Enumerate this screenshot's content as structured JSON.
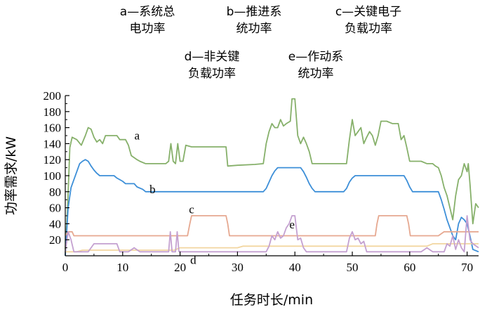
{
  "chart_data": {
    "type": "line",
    "xlabel": "任务时长/min",
    "ylabel": "功率需求/kW",
    "xlim": [
      0,
      72
    ],
    "ylim": [
      0,
      200
    ],
    "xticks": [
      0,
      10,
      20,
      30,
      40,
      50,
      60,
      70
    ],
    "yticks": [
      20,
      40,
      60,
      80,
      100,
      120,
      140,
      160,
      180,
      200
    ],
    "grid": false,
    "legend": [
      {
        "key": "a",
        "lines": [
          "a—系统总",
          "电功率"
        ]
      },
      {
        "key": "b",
        "lines": [
          "b—推进系",
          "统功率"
        ]
      },
      {
        "key": "c",
        "lines": [
          "c—关键电子",
          "负载功率"
        ]
      },
      {
        "key": "d",
        "lines": [
          "d—非关键",
          "负载功率"
        ]
      },
      {
        "key": "e",
        "lines": [
          "e—作动系",
          "统功率"
        ]
      }
    ],
    "series": [
      {
        "name": "a",
        "color": "#86b06a",
        "label_at": [
          12.5,
          145
        ],
        "points": [
          [
            0,
            8
          ],
          [
            0.4,
            60
          ],
          [
            0.8,
            135
          ],
          [
            1.2,
            148
          ],
          [
            2,
            145
          ],
          [
            2.8,
            138
          ],
          [
            3.5,
            150
          ],
          [
            4,
            160
          ],
          [
            4.5,
            158
          ],
          [
            5,
            148
          ],
          [
            5.5,
            142
          ],
          [
            6,
            145
          ],
          [
            6.5,
            140
          ],
          [
            7,
            150
          ],
          [
            8,
            150
          ],
          [
            9,
            150
          ],
          [
            9.5,
            145
          ],
          [
            10.5,
            145
          ],
          [
            11,
            138
          ],
          [
            11.5,
            125
          ],
          [
            12.5,
            120
          ],
          [
            13,
            118
          ],
          [
            14,
            115
          ],
          [
            17,
            115
          ],
          [
            17.5,
            115
          ],
          [
            18,
            118
          ],
          [
            18.4,
            140
          ],
          [
            18.8,
            118
          ],
          [
            19.2,
            115
          ],
          [
            19.6,
            140
          ],
          [
            20,
            118
          ],
          [
            20.5,
            118
          ],
          [
            21,
            138
          ],
          [
            22,
            136
          ],
          [
            24,
            136
          ],
          [
            26,
            136
          ],
          [
            28,
            136
          ],
          [
            28.3,
            112
          ],
          [
            30,
            113
          ],
          [
            33,
            114
          ],
          [
            34.5,
            115
          ],
          [
            35,
            140
          ],
          [
            35.5,
            155
          ],
          [
            36,
            165
          ],
          [
            36.5,
            160
          ],
          [
            37,
            160
          ],
          [
            37.5,
            170
          ],
          [
            38,
            162
          ],
          [
            38.5,
            165
          ],
          [
            39.2,
            168
          ],
          [
            39.5,
            196
          ],
          [
            40,
            196
          ],
          [
            40.5,
            150
          ],
          [
            41,
            140
          ],
          [
            41.5,
            148
          ],
          [
            42,
            140
          ],
          [
            42.5,
            130
          ],
          [
            43,
            115
          ],
          [
            45,
            115
          ],
          [
            48,
            115
          ],
          [
            49,
            115
          ],
          [
            49.5,
            145
          ],
          [
            50,
            170
          ],
          [
            50.5,
            150
          ],
          [
            51,
            155
          ],
          [
            51.5,
            160
          ],
          [
            52,
            140
          ],
          [
            52.5,
            148
          ],
          [
            53,
            155
          ],
          [
            53.5,
            150
          ],
          [
            54,
            138
          ],
          [
            54.5,
            150
          ],
          [
            55,
            168
          ],
          [
            56,
            168
          ],
          [
            57,
            165
          ],
          [
            58,
            165
          ],
          [
            58.5,
            145
          ],
          [
            59,
            150
          ],
          [
            59.5,
            135
          ],
          [
            60,
            118
          ],
          [
            62,
            118
          ],
          [
            63,
            115
          ],
          [
            64,
            115
          ],
          [
            64.5,
            112
          ],
          [
            65,
            110
          ],
          [
            65.5,
            100
          ],
          [
            66,
            85
          ],
          [
            66.5,
            75
          ],
          [
            67,
            60
          ],
          [
            67.5,
            45
          ],
          [
            68,
            75
          ],
          [
            68.5,
            95
          ],
          [
            69,
            100
          ],
          [
            69.5,
            115
          ],
          [
            70,
            105
          ],
          [
            70.2,
            115
          ],
          [
            70.5,
            90
          ],
          [
            71,
            40
          ],
          [
            71.5,
            65
          ],
          [
            72,
            60
          ]
        ]
      },
      {
        "name": "b",
        "color": "#3d8fd8",
        "label_at": [
          15.2,
          78
        ],
        "points": [
          [
            0,
            0
          ],
          [
            0.5,
            60
          ],
          [
            1,
            85
          ],
          [
            1.5,
            95
          ],
          [
            2,
            105
          ],
          [
            2.5,
            115
          ],
          [
            3,
            118
          ],
          [
            3.5,
            120
          ],
          [
            4,
            118
          ],
          [
            4.5,
            112
          ],
          [
            5,
            107
          ],
          [
            5.5,
            103
          ],
          [
            6,
            100
          ],
          [
            8,
            100
          ],
          [
            8.5,
            100
          ],
          [
            9,
            97
          ],
          [
            10,
            93
          ],
          [
            10.5,
            90
          ],
          [
            12,
            90
          ],
          [
            12.5,
            86
          ],
          [
            13.5,
            83
          ],
          [
            14,
            80
          ],
          [
            20,
            80
          ],
          [
            30,
            80
          ],
          [
            34.5,
            80
          ],
          [
            35,
            84
          ],
          [
            35.5,
            92
          ],
          [
            36,
            100
          ],
          [
            36.5,
            106
          ],
          [
            37,
            110
          ],
          [
            41,
            110
          ],
          [
            41.5,
            105
          ],
          [
            42,
            98
          ],
          [
            42.5,
            90
          ],
          [
            43,
            84
          ],
          [
            43.5,
            80
          ],
          [
            48,
            80
          ],
          [
            48.5,
            80
          ],
          [
            49,
            84
          ],
          [
            49.5,
            92
          ],
          [
            50,
            97
          ],
          [
            50.5,
            100
          ],
          [
            59,
            100
          ],
          [
            59.5,
            94
          ],
          [
            60,
            86
          ],
          [
            60.5,
            80
          ],
          [
            64,
            80
          ],
          [
            65,
            80
          ],
          [
            65.5,
            70
          ],
          [
            66,
            58
          ],
          [
            66.5,
            45
          ],
          [
            67,
            35
          ],
          [
            67.5,
            25
          ],
          [
            68,
            20
          ],
          [
            68.5,
            40
          ],
          [
            69,
            48
          ],
          [
            69.5,
            45
          ],
          [
            70,
            40
          ],
          [
            70.5,
            25
          ],
          [
            71,
            8
          ],
          [
            72,
            5
          ]
        ]
      },
      {
        "name": "c",
        "color": "#e6a890",
        "label_at": [
          22,
          53
        ],
        "points": [
          [
            0,
            25
          ],
          [
            0.5,
            30
          ],
          [
            1.2,
            30
          ],
          [
            1.5,
            25
          ],
          [
            20,
            25
          ],
          [
            21.3,
            25
          ],
          [
            21.7,
            40
          ],
          [
            22,
            50
          ],
          [
            28,
            50
          ],
          [
            28.3,
            40
          ],
          [
            28.6,
            25
          ],
          [
            35,
            25
          ],
          [
            54,
            25
          ],
          [
            54.3,
            40
          ],
          [
            54.6,
            50
          ],
          [
            59.5,
            50
          ],
          [
            59.8,
            40
          ],
          [
            60.1,
            25
          ],
          [
            65,
            25
          ],
          [
            66,
            30
          ],
          [
            72,
            30
          ]
        ]
      },
      {
        "name": "d",
        "color": "#f2d6a0",
        "label_at": [
          22.3,
          -10
        ],
        "points": [
          [
            0,
            5
          ],
          [
            2,
            5
          ],
          [
            3,
            7
          ],
          [
            5,
            7
          ],
          [
            10,
            7
          ],
          [
            19,
            7
          ],
          [
            20,
            10
          ],
          [
            30,
            10
          ],
          [
            31,
            12
          ],
          [
            60,
            12
          ],
          [
            63,
            12
          ],
          [
            64,
            15
          ],
          [
            72,
            15
          ]
        ]
      },
      {
        "name": "e",
        "color": "#c4a0d0",
        "label_at": [
          39.5,
          34
        ],
        "points": [
          [
            0,
            5
          ],
          [
            0.5,
            30
          ],
          [
            1,
            20
          ],
          [
            1.5,
            5
          ],
          [
            4,
            5
          ],
          [
            5,
            15
          ],
          [
            9,
            15
          ],
          [
            9.5,
            5
          ],
          [
            11,
            5
          ],
          [
            12,
            10
          ],
          [
            13,
            5
          ],
          [
            18,
            5
          ],
          [
            18.3,
            30
          ],
          [
            18.6,
            5
          ],
          [
            19.2,
            5
          ],
          [
            19.5,
            30
          ],
          [
            19.8,
            5
          ],
          [
            21,
            5
          ],
          [
            35,
            5
          ],
          [
            35.5,
            12
          ],
          [
            36,
            25
          ],
          [
            36.5,
            20
          ],
          [
            37,
            30
          ],
          [
            37.5,
            22
          ],
          [
            38,
            25
          ],
          [
            38.5,
            35
          ],
          [
            39,
            40
          ],
          [
            39.5,
            50
          ],
          [
            40,
            50
          ],
          [
            40.5,
            20
          ],
          [
            41,
            22
          ],
          [
            41.5,
            10
          ],
          [
            42,
            5
          ],
          [
            49,
            5
          ],
          [
            49.5,
            22
          ],
          [
            50,
            30
          ],
          [
            50.5,
            20
          ],
          [
            51,
            22
          ],
          [
            51.5,
            15
          ],
          [
            52,
            18
          ],
          [
            52.5,
            5
          ],
          [
            62,
            5
          ],
          [
            63,
            10
          ],
          [
            64,
            5
          ],
          [
            66,
            5
          ],
          [
            66.5,
            15
          ],
          [
            67,
            12
          ],
          [
            67.5,
            25
          ],
          [
            68,
            8
          ],
          [
            68.5,
            20
          ],
          [
            69,
            10
          ],
          [
            69.5,
            5
          ],
          [
            70,
            50
          ],
          [
            70.5,
            20
          ],
          [
            71,
            15
          ],
          [
            72,
            10
          ]
        ]
      }
    ]
  }
}
